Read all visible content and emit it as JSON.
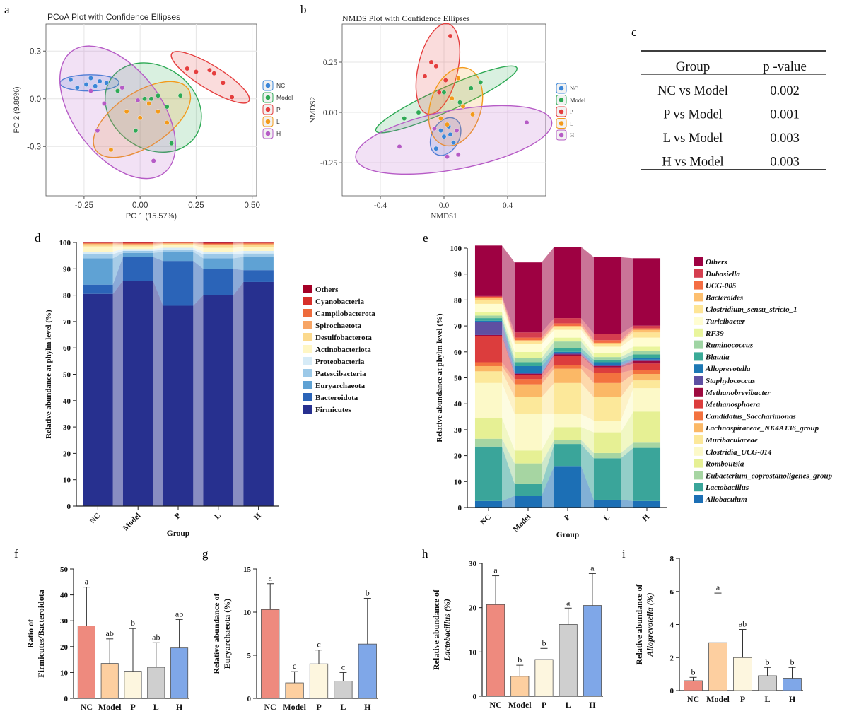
{
  "panels": {
    "a": "a",
    "b": "b",
    "c": "c",
    "d": "d",
    "e": "e",
    "f": "f",
    "g": "g",
    "h": "h",
    "i": "i"
  },
  "chart_data": [
    {
      "id": "a",
      "type": "scatter",
      "title": "PCoA Plot with Confidence Ellipses",
      "xlabel": "PC 1 (15.57%)",
      "ylabel": "PC 2 (9.86%)",
      "xlim": [
        -0.42,
        0.52
      ],
      "ylim": [
        -0.61,
        0.47
      ],
      "xticks": [
        -0.25,
        0.0,
        0.25,
        0.5
      ],
      "xtick_labels": [
        "-0.25",
        "0.00",
        "0.25",
        "0.50"
      ],
      "yticks": [
        -0.3,
        0.0,
        0.3
      ],
      "ytick_labels": [
        "-0.3",
        "0.0",
        "0.3"
      ],
      "legend": [
        "NC",
        "Model",
        "P",
        "L",
        "H"
      ],
      "colors": {
        "NC": "#3b86d8",
        "Model": "#2eaa55",
        "P": "#e53e3e",
        "L": "#f39a1a",
        "H": "#b65bc6"
      },
      "series": [
        {
          "name": "NC",
          "points": [
            [
              -0.31,
              0.12
            ],
            [
              -0.28,
              0.07
            ],
            [
              -0.24,
              0.09
            ],
            [
              -0.22,
              0.13
            ],
            [
              -0.2,
              0.08
            ],
            [
              -0.18,
              0.11
            ],
            [
              -0.15,
              0.1
            ]
          ]
        },
        {
          "name": "Model",
          "points": [
            [
              -0.1,
              0.05
            ],
            [
              0.02,
              0.0
            ],
            [
              0.05,
              0.0
            ],
            [
              0.08,
              0.02
            ],
            [
              0.12,
              -0.05
            ],
            [
              0.14,
              -0.28
            ],
            [
              -0.02,
              -0.2
            ],
            [
              0.18,
              0.02
            ]
          ]
        },
        {
          "name": "P",
          "points": [
            [
              0.21,
              0.19
            ],
            [
              0.25,
              0.17
            ],
            [
              0.31,
              0.18
            ],
            [
              0.33,
              0.16
            ],
            [
              0.37,
              0.1
            ],
            [
              0.41,
              0.01
            ]
          ]
        },
        {
          "name": "L",
          "points": [
            [
              -0.13,
              -0.32
            ],
            [
              -0.06,
              -0.08
            ],
            [
              0.0,
              -0.12
            ],
            [
              0.08,
              -0.08
            ],
            [
              0.12,
              -0.15
            ],
            [
              0.04,
              -0.03
            ]
          ]
        },
        {
          "name": "H",
          "points": [
            [
              -0.22,
              0.05
            ],
            [
              -0.16,
              -0.03
            ],
            [
              -0.08,
              0.07
            ],
            [
              -0.19,
              -0.2
            ],
            [
              0.06,
              -0.39
            ],
            [
              -0.01,
              -0.01
            ]
          ]
        }
      ]
    },
    {
      "id": "b",
      "type": "scatter",
      "title": "NMDS Plot with Confidence Ellipses",
      "xlabel": "NMDS1",
      "ylabel": "NMDS2",
      "xlim": [
        -0.64,
        0.64
      ],
      "ylim": [
        -0.415,
        0.44
      ],
      "xticks": [
        -0.4,
        0.0,
        0.4
      ],
      "xtick_labels": [
        "-0.4",
        "0.0",
        "0.4"
      ],
      "yticks": [
        -0.25,
        0.0,
        0.25
      ],
      "ytick_labels": [
        "-0.25",
        "0.00",
        "0.25"
      ],
      "legend": [
        "NC",
        "Model",
        "P",
        "L",
        "H"
      ],
      "colors": {
        "NC": "#3b86d8",
        "Model": "#2eaa55",
        "P": "#e53e3e",
        "L": "#f39a1a",
        "H": "#b65bc6"
      },
      "series": [
        {
          "name": "NC",
          "points": [
            [
              -0.02,
              -0.09
            ],
            [
              0.0,
              -0.12
            ],
            [
              0.03,
              -0.07
            ],
            [
              0.06,
              -0.15
            ],
            [
              -0.05,
              -0.18
            ],
            [
              0.04,
              -0.11
            ]
          ]
        },
        {
          "name": "Model",
          "points": [
            [
              -0.25,
              -0.03
            ],
            [
              -0.16,
              0.0
            ],
            [
              0.0,
              0.1
            ],
            [
              0.1,
              0.05
            ],
            [
              0.17,
              0.12
            ],
            [
              0.23,
              0.15
            ]
          ]
        },
        {
          "name": "P",
          "points": [
            [
              -0.12,
              0.18
            ],
            [
              -0.08,
              0.25
            ],
            [
              -0.05,
              0.23
            ],
            [
              0.01,
              0.16
            ],
            [
              0.04,
              0.38
            ],
            [
              -0.03,
              0.1
            ]
          ]
        },
        {
          "name": "L",
          "points": [
            [
              0.05,
              0.07
            ],
            [
              0.09,
              0.17
            ],
            [
              0.12,
              0.03
            ],
            [
              0.18,
              -0.01
            ],
            [
              -0.02,
              -0.03
            ],
            [
              0.02,
              -0.06
            ]
          ]
        },
        {
          "name": "H",
          "points": [
            [
              -0.28,
              -0.17
            ],
            [
              0.09,
              -0.21
            ],
            [
              0.02,
              -0.22
            ],
            [
              0.52,
              -0.05
            ],
            [
              -0.06,
              -0.08
            ],
            [
              0.08,
              -0.09
            ]
          ]
        }
      ]
    },
    {
      "id": "c",
      "type": "table",
      "columns": [
        "Group",
        "p -value"
      ],
      "rows": [
        [
          "NC vs Model",
          "0.002"
        ],
        [
          "P vs Model",
          "0.001"
        ],
        [
          "L vs Model",
          "0.003"
        ],
        [
          "H vs Model",
          "0.003"
        ]
      ]
    },
    {
      "id": "d",
      "type": "bar",
      "stacked": true,
      "xlabel": "Group",
      "ylabel": "Relative abundance at phylm level (%)",
      "ylim": [
        0,
        100
      ],
      "yticks": [
        "0",
        "10",
        "20",
        "30",
        "40",
        "50",
        "60",
        "70",
        "80",
        "90",
        "100"
      ],
      "categories": [
        "NC",
        "Model",
        "P",
        "L",
        "H"
      ],
      "series": [
        {
          "name": "Firmicutes",
          "color": "#27308f",
          "values": [
            80.5,
            85.5,
            76.0,
            80.0,
            85.0
          ]
        },
        {
          "name": "Bacteroidota",
          "color": "#2b64b8",
          "values": [
            3.5,
            9.0,
            17.0,
            10.0,
            4.5
          ]
        },
        {
          "name": "Euryarchaeota",
          "color": "#5fa2d4",
          "values": [
            10.0,
            1.5,
            3.5,
            4.0,
            5.0
          ]
        },
        {
          "name": "Patescibacteria",
          "color": "#9cc9e8",
          "values": [
            1.5,
            0.8,
            0.8,
            1.5,
            1.3
          ]
        },
        {
          "name": "Proteobacteria",
          "color": "#d6ebf7",
          "values": [
            1.0,
            0.7,
            0.7,
            1.0,
            1.0
          ]
        },
        {
          "name": "Actinobacteriota",
          "color": "#fff6c4",
          "values": [
            2.0,
            1.0,
            1.0,
            1.5,
            1.5
          ]
        },
        {
          "name": "Desulfobacterota",
          "color": "#fbd98d",
          "values": [
            0.8,
            0.6,
            0.5,
            0.9,
            0.9
          ]
        },
        {
          "name": "Spirochaetota",
          "color": "#f7a565",
          "values": [
            0.3,
            0.3,
            0.2,
            0.4,
            0.3
          ]
        },
        {
          "name": "Campilobacterota",
          "color": "#ee6b3c",
          "values": [
            0.2,
            0.3,
            0.2,
            0.3,
            0.3
          ]
        },
        {
          "name": "Cyanobacteria",
          "color": "#d7302a",
          "values": [
            0.1,
            0.2,
            0.05,
            0.2,
            0.1
          ]
        },
        {
          "name": "Others",
          "color": "#a50026",
          "values": [
            0.1,
            0.1,
            0.05,
            0.2,
            0.1
          ]
        }
      ],
      "legend_order": [
        "Others",
        "Cyanobacteria",
        "Campilobacterota",
        "Spirochaetota",
        "Desulfobacterota",
        "Actinobacteriota",
        "Proteobacteria",
        "Patescibacteria",
        "Euryarchaeota",
        "Bacteroidota",
        "Firmicutes"
      ]
    },
    {
      "id": "e",
      "type": "bar",
      "stacked": true,
      "xlabel": "Group",
      "ylabel": "Relative abundance at phylm level (%)",
      "ylim": [
        0,
        100
      ],
      "yticks": [
        "0",
        "10",
        "20",
        "30",
        "40",
        "50",
        "60",
        "70",
        "80",
        "90",
        "100"
      ],
      "categories": [
        "NC",
        "Model",
        "P",
        "L",
        "H"
      ],
      "series": [
        {
          "name": "Allobaculum",
          "color": "#1c6fb5",
          "values": [
            2.5,
            4.5,
            16.0,
            3.0,
            2.5
          ]
        },
        {
          "name": "Lactobacillus",
          "color": "#3aa59a",
          "values": [
            21.0,
            4.5,
            8.5,
            16.0,
            20.5
          ]
        },
        {
          "name": "Eubacterium_coprostanoligenes_group",
          "color": "#a6d5a2",
          "values": [
            3.0,
            8.0,
            1.5,
            2.0,
            2.0
          ]
        },
        {
          "name": "Romboutsia",
          "color": "#e6f094",
          "values": [
            8.0,
            5.0,
            5.0,
            8.0,
            12.0
          ]
        },
        {
          "name": "Clostridia_UCG-014",
          "color": "#fcf9c8",
          "values": [
            13.5,
            14.0,
            5.0,
            4.5,
            9.0
          ]
        },
        {
          "name": "Muribaculaceae",
          "color": "#fce89a",
          "values": [
            4.5,
            6.5,
            12.0,
            9.0,
            3.0
          ]
        },
        {
          "name": "Lachnospiraceae_NK4A136_group",
          "color": "#fbb866",
          "values": [
            2.0,
            5.0,
            5.5,
            5.5,
            2.5
          ]
        },
        {
          "name": "Candidatus_Saccharimonas",
          "color": "#f3723f",
          "values": [
            1.5,
            2.0,
            1.5,
            4.0,
            1.5
          ]
        },
        {
          "name": "Methanosphaera",
          "color": "#dc3d3d",
          "values": [
            10.0,
            1.5,
            3.5,
            2.0,
            2.5
          ]
        },
        {
          "name": "Methanobrevibacter",
          "color": "#9e0a3f",
          "values": [
            0.5,
            0.5,
            0.5,
            0.5,
            1.0
          ]
        },
        {
          "name": "Staphylococcus",
          "color": "#5e4fa2",
          "values": [
            5.0,
            0.5,
            0.5,
            0.5,
            0.5
          ]
        },
        {
          "name": "Alloprevotella",
          "color": "#1d78b4",
          "values": [
            0.5,
            2.5,
            0.5,
            1.0,
            0.5
          ]
        },
        {
          "name": "Blautia",
          "color": "#3aaa97",
          "values": [
            1.0,
            1.5,
            1.5,
            1.0,
            1.5
          ]
        },
        {
          "name": "Ruminococcus",
          "color": "#9fd4a3",
          "values": [
            1.0,
            1.5,
            2.5,
            1.0,
            1.5
          ]
        },
        {
          "name": "RF39",
          "color": "#e9f59c",
          "values": [
            1.5,
            2.5,
            1.5,
            1.5,
            1.5
          ]
        },
        {
          "name": "Turicibacter",
          "color": "#fffdd1",
          "values": [
            3.0,
            3.0,
            3.0,
            2.5,
            3.5
          ]
        },
        {
          "name": "Clostridium_sensu_stricto_1",
          "color": "#fee596",
          "values": [
            1.5,
            1.0,
            1.0,
            1.0,
            2.0
          ]
        },
        {
          "name": "Bacteroides",
          "color": "#fdbf6f",
          "values": [
            0.8,
            0.5,
            0.5,
            0.5,
            1.0
          ]
        },
        {
          "name": "UCG-005",
          "color": "#f46d43",
          "values": [
            0.4,
            1.0,
            1.0,
            1.0,
            0.6
          ]
        },
        {
          "name": "Dubosiella",
          "color": "#d53e4f",
          "values": [
            0.3,
            2.0,
            2.0,
            2.5,
            1.0
          ]
        },
        {
          "name": "Others",
          "color": "#9e0142",
          "values": [
            19.5,
            27.0,
            27.5,
            29.5,
            26.0
          ]
        }
      ],
      "legend_order": [
        "Others",
        "Dubosiella",
        "UCG-005",
        "Bacteroides",
        "Clostridium_sensu_stricto_1",
        "Turicibacter",
        "RF39",
        "Ruminococcus",
        "Blautia",
        "Alloprevotella",
        "Staphylococcus",
        "Methanobrevibacter",
        "Methanosphaera",
        "Candidatus_Saccharimonas",
        "Lachnospiraceae_NK4A136_group",
        "Muribaculaceae",
        "Clostridia_UCG-014",
        "Romboutsia",
        "Eubacterium_coprostanoligenes_group",
        "Lactobacillus",
        "Allobaculum"
      ]
    },
    {
      "id": "f",
      "type": "bar",
      "ylabel": [
        "Ratio of",
        "Firmicutes/Bacteroidota"
      ],
      "ylim": [
        0,
        50
      ],
      "yticks": [
        "0",
        "10",
        "20",
        "30",
        "40",
        "50"
      ],
      "categories": [
        "NC",
        "Model",
        "P",
        "L",
        "H"
      ],
      "values": [
        28.0,
        13.5,
        10.5,
        12.0,
        19.5
      ],
      "errors": [
        15.0,
        9.5,
        16.5,
        9.5,
        11.0
      ],
      "letters": [
        "a",
        "ab",
        "b",
        "ab",
        "ab"
      ],
      "colors": [
        "#ee8a7e",
        "#fdcfa0",
        "#fdf6df",
        "#cfcfcf",
        "#7fa7e8"
      ]
    },
    {
      "id": "g",
      "type": "bar",
      "ylabel": [
        "Relative abundance of",
        "Euryarchaeota  (%)"
      ],
      "ylim": [
        0,
        15
      ],
      "yticks": [
        "0",
        "5",
        "10",
        "15"
      ],
      "categories": [
        "NC",
        "Model",
        "P",
        "L",
        "H"
      ],
      "values": [
        10.3,
        1.8,
        4.0,
        2.0,
        6.3
      ],
      "errors": [
        3.0,
        1.3,
        1.6,
        1.0,
        5.3
      ],
      "letters": [
        "a",
        "c",
        "c",
        "c",
        "b"
      ],
      "colors": [
        "#ee8a7e",
        "#fdcfa0",
        "#fdf6df",
        "#cfcfcf",
        "#7fa7e8"
      ]
    },
    {
      "id": "h",
      "type": "bar",
      "ylabel": [
        "Relative abundance of",
        "Lactobacillus  (%)"
      ],
      "ylim": [
        0,
        30
      ],
      "yticks": [
        "0",
        "10",
        "20",
        "30"
      ],
      "categories": [
        "NC",
        "Model",
        "P",
        "L",
        "H"
      ],
      "values": [
        20.7,
        4.5,
        8.3,
        16.2,
        20.5
      ],
      "errors": [
        6.5,
        2.5,
        2.5,
        3.7,
        7.2
      ],
      "letters": [
        "a",
        "b",
        "b",
        "a",
        "a"
      ],
      "colors": [
        "#ee8a7e",
        "#fdcfa0",
        "#fdf6df",
        "#cfcfcf",
        "#7fa7e8"
      ]
    },
    {
      "id": "i",
      "type": "bar",
      "ylabel": [
        "Relative abundance of",
        "Alloprevotella  (%)"
      ],
      "ylim": [
        0,
        8
      ],
      "yticks": [
        "0",
        "2",
        "4",
        "6",
        "8"
      ],
      "categories": [
        "NC",
        "Model",
        "P",
        "L",
        "H"
      ],
      "values": [
        0.6,
        2.9,
        2.0,
        0.9,
        0.75
      ],
      "errors": [
        0.2,
        3.0,
        1.7,
        0.5,
        0.65
      ],
      "letters": [
        "b",
        "a",
        "ab",
        "b",
        "b"
      ],
      "colors": [
        "#ee8a7e",
        "#fdcfa0",
        "#fdf6df",
        "#cfcfcf",
        "#7fa7e8"
      ]
    }
  ]
}
